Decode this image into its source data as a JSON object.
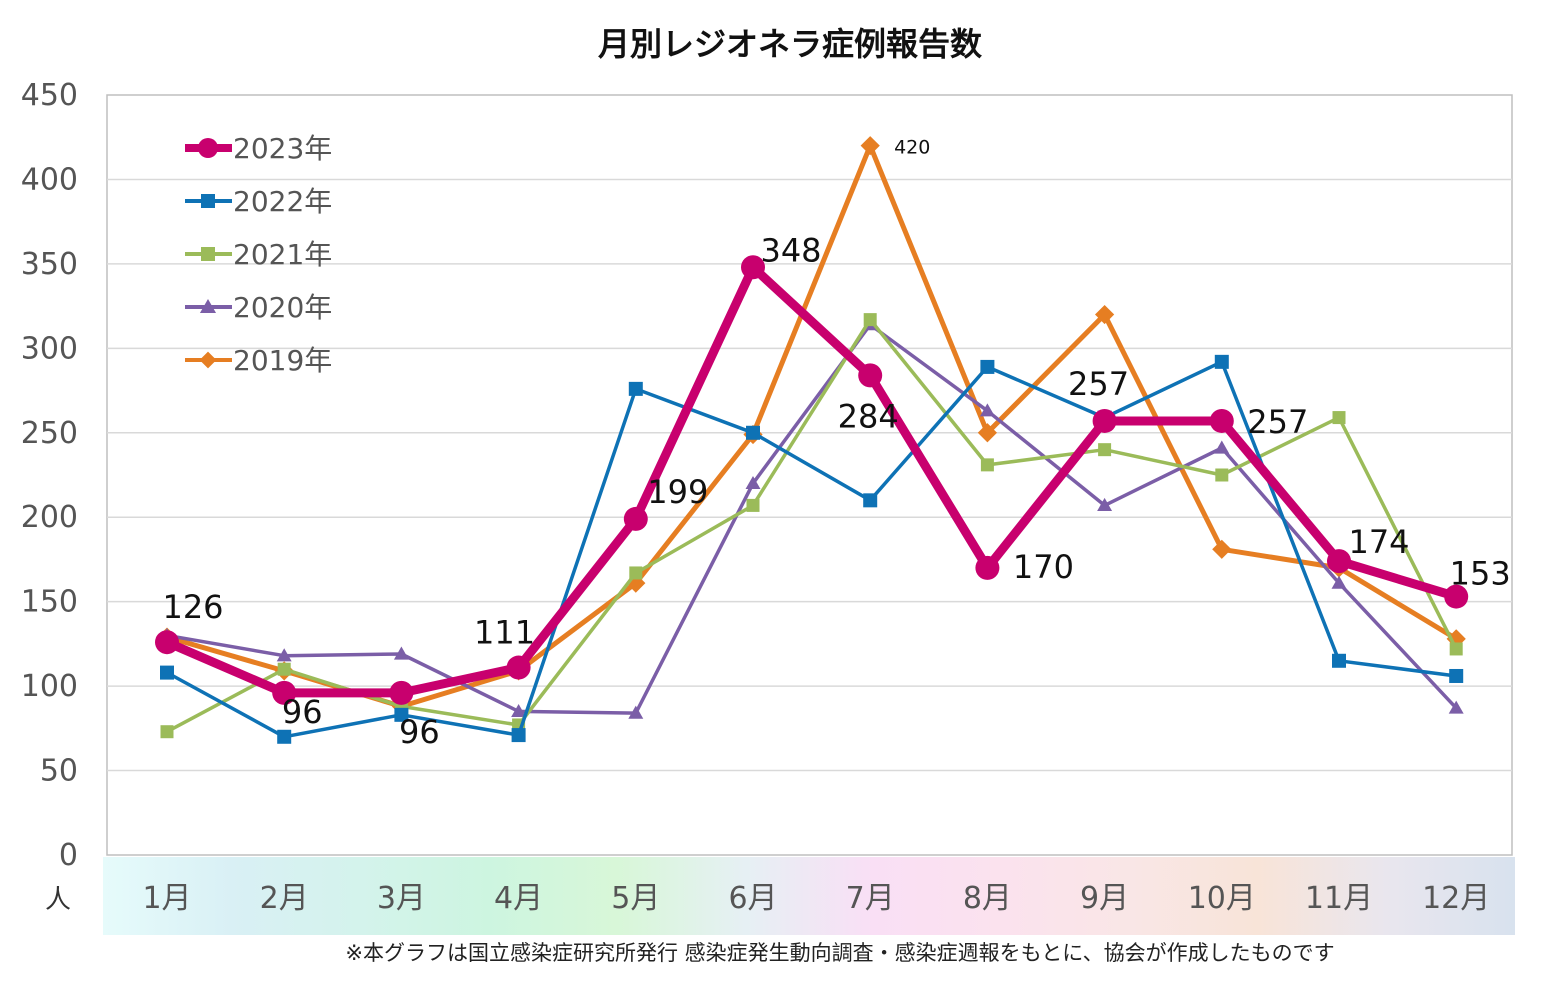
{
  "chart_data": {
    "type": "line",
    "title": "月別レジオネラ症例報告数",
    "unit_label": "人",
    "note": "※本グラフは国立感染症研究所発行 感染症発生動向調査・感染症週報をもとに、協会が作成したものです",
    "categories": [
      "1月",
      "2月",
      "3月",
      "4月",
      "5月",
      "6月",
      "7月",
      "8月",
      "9月",
      "10月",
      "11月",
      "12月"
    ],
    "ylim": [
      0,
      450
    ],
    "yticks": [
      0,
      50,
      100,
      150,
      200,
      250,
      300,
      350,
      400,
      450
    ],
    "grid": true,
    "legend_position": "top-left",
    "series": [
      {
        "name": "2019年",
        "color": "#e67e22",
        "marker": "diamond",
        "values": [
          129,
          109,
          88,
          109,
          161,
          249,
          420,
          250,
          320,
          181,
          170,
          128
        ]
      },
      {
        "name": "2020年",
        "color": "#7b5ea7",
        "marker": "triangle",
        "values": [
          130,
          118,
          119,
          85,
          84,
          220,
          314,
          263,
          207,
          241,
          161,
          87
        ]
      },
      {
        "name": "2021年",
        "color": "#9bbb59",
        "marker": "square",
        "values": [
          73,
          110,
          88,
          77,
          167,
          207,
          317,
          231,
          240,
          225,
          259,
          122
        ]
      },
      {
        "name": "2022年",
        "color": "#0e72b5",
        "marker": "square",
        "values": [
          108,
          70,
          83,
          71,
          276,
          250,
          210,
          289,
          259,
          292,
          115,
          106
        ]
      },
      {
        "name": "2023年",
        "color": "#c8006e",
        "marker": "circle",
        "values": [
          126,
          96,
          96,
          111,
          199,
          348,
          284,
          170,
          257,
          257,
          174,
          153
        ]
      }
    ],
    "data_labels": [
      {
        "series": "2023年",
        "index": 0,
        "text": "126"
      },
      {
        "series": "2023年",
        "index": 1,
        "text": "96"
      },
      {
        "series": "2023年",
        "index": 2,
        "text": "96"
      },
      {
        "series": "2023年",
        "index": 3,
        "text": "111"
      },
      {
        "series": "2023年",
        "index": 4,
        "text": "199"
      },
      {
        "series": "2023年",
        "index": 5,
        "text": "348"
      },
      {
        "series": "2023年",
        "index": 6,
        "text": "284"
      },
      {
        "series": "2023年",
        "index": 7,
        "text": "170"
      },
      {
        "series": "2023年",
        "index": 8,
        "text": "257"
      },
      {
        "series": "2023年",
        "index": 9,
        "text": "257"
      },
      {
        "series": "2023年",
        "index": 10,
        "text": "174"
      },
      {
        "series": "2023年",
        "index": 11,
        "text": "153"
      },
      {
        "series": "2019年",
        "index": 6,
        "text": "420"
      }
    ],
    "legend_order": [
      "2023年",
      "2022年",
      "2021年",
      "2020年",
      "2019年"
    ],
    "category_band_colors": [
      "#e6fbfb",
      "#d9f0f5",
      "#d4f3ec",
      "#cdf5e0",
      "#d8f7d8",
      "#e6f0f4",
      "#f9dff5",
      "#fbe2ee",
      "#f9e6e6",
      "#f8e4d8",
      "#e9e6ee",
      "#d8e2ee"
    ]
  }
}
